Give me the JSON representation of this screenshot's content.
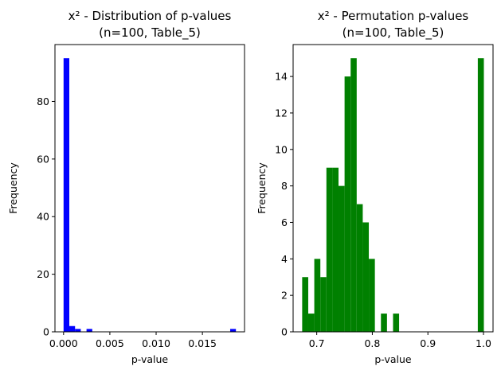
{
  "chart_data": [
    {
      "type": "bar",
      "title_line1": "x² - Distribution of p-values",
      "title_line2": "(n=100, Table_5)",
      "xlabel": "p-value",
      "ylabel": "Frequency",
      "xlim": [
        -0.00093,
        0.01955
      ],
      "ylim": [
        0,
        99.75
      ],
      "xticks": [
        0.0,
        0.005,
        0.01,
        0.015
      ],
      "xtick_labels": [
        "0.000",
        "0.005",
        "0.010",
        "0.015"
      ],
      "yticks": [
        0,
        20,
        40,
        60,
        80
      ],
      "ytick_labels": [
        "0",
        "20",
        "40",
        "60",
        "80"
      ],
      "bar_color": "#0000ff",
      "bins": [
        {
          "x0": 0.0,
          "x1": 0.00062,
          "count": 95
        },
        {
          "x0": 0.00062,
          "x1": 0.00124,
          "count": 2
        },
        {
          "x0": 0.00124,
          "x1": 0.00186,
          "count": 1
        },
        {
          "x0": 0.00248,
          "x1": 0.0031,
          "count": 1
        },
        {
          "x0": 0.018,
          "x1": 0.01862,
          "count": 1
        }
      ],
      "grid": false
    },
    {
      "type": "bar",
      "title_line1": "x² - Permutation p-values",
      "title_line2": "(n=100, Table_5)",
      "xlabel": "p-value",
      "ylabel": "Frequency",
      "xlim": [
        0.6575,
        1.0172
      ],
      "ylim": [
        0,
        15.75
      ],
      "xticks": [
        0.7,
        0.8,
        0.9,
        1.0
      ],
      "xtick_labels": [
        "0.7",
        "0.8",
        "0.9",
        "1.0"
      ],
      "yticks": [
        0,
        2,
        4,
        6,
        8,
        10,
        12,
        14
      ],
      "ytick_labels": [
        "0",
        "2",
        "4",
        "6",
        "8",
        "10",
        "12",
        "14"
      ],
      "bar_color": "#008000",
      "bins": [
        {
          "x0": 0.6738,
          "x1": 0.6847,
          "count": 3
        },
        {
          "x0": 0.6847,
          "x1": 0.6956,
          "count": 1
        },
        {
          "x0": 0.6956,
          "x1": 0.7065,
          "count": 4
        },
        {
          "x0": 0.7065,
          "x1": 0.7174,
          "count": 3
        },
        {
          "x0": 0.7174,
          "x1": 0.7283,
          "count": 9
        },
        {
          "x0": 0.7283,
          "x1": 0.7392,
          "count": 9
        },
        {
          "x0": 0.7392,
          "x1": 0.7501,
          "count": 8
        },
        {
          "x0": 0.7501,
          "x1": 0.761,
          "count": 14
        },
        {
          "x0": 0.761,
          "x1": 0.7719,
          "count": 15
        },
        {
          "x0": 0.7719,
          "x1": 0.7828,
          "count": 7
        },
        {
          "x0": 0.7828,
          "x1": 0.7937,
          "count": 6
        },
        {
          "x0": 0.7937,
          "x1": 0.8046,
          "count": 4
        },
        {
          "x0": 0.8155,
          "x1": 0.8264,
          "count": 1
        },
        {
          "x0": 0.8373,
          "x1": 0.8482,
          "count": 1
        },
        {
          "x0": 0.9898,
          "x1": 1.0007,
          "count": 15
        }
      ],
      "grid": false
    }
  ]
}
